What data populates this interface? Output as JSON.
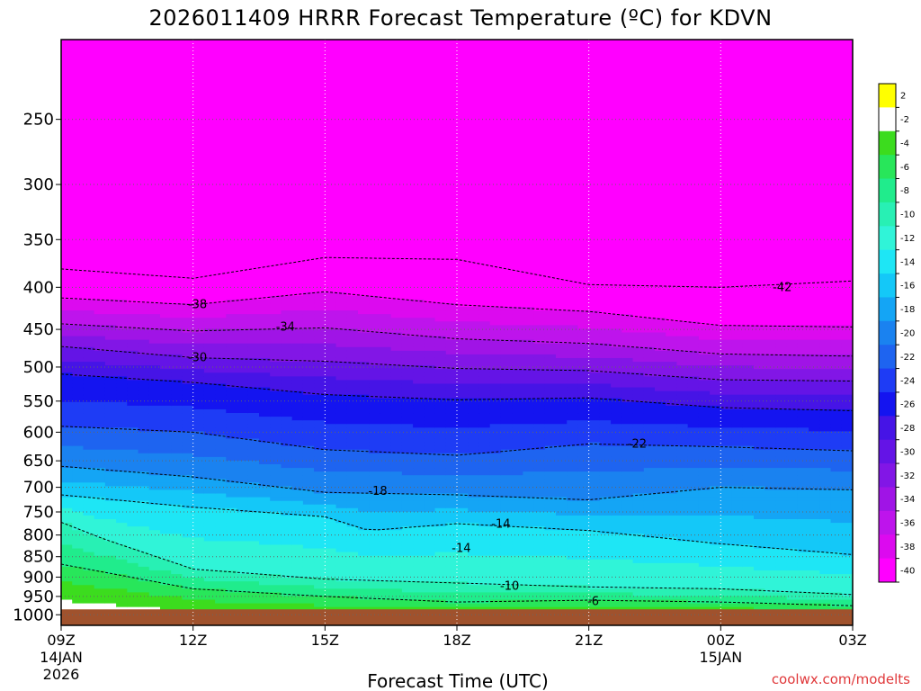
{
  "chart_data": {
    "type": "heatmap",
    "title": "2026011409 HRRR Forecast Temperature (ºC) for KDVN",
    "xlabel": "Forecast Time (UTC)",
    "ylabel": "",
    "credit": "coolwx.com/modelts",
    "x_ticks": [
      {
        "hour": 0,
        "label": "09Z",
        "sub1": "14JAN",
        "sub2": "2026"
      },
      {
        "hour": 3,
        "label": "12Z",
        "sub1": "",
        "sub2": ""
      },
      {
        "hour": 6,
        "label": "15Z",
        "sub1": "",
        "sub2": ""
      },
      {
        "hour": 9,
        "label": "18Z",
        "sub1": "",
        "sub2": ""
      },
      {
        "hour": 12,
        "label": "21Z",
        "sub1": "",
        "sub2": ""
      },
      {
        "hour": 15,
        "label": "00Z",
        "sub1": "15JAN",
        "sub2": ""
      },
      {
        "hour": 18,
        "label": "03Z",
        "sub1": "",
        "sub2": ""
      }
    ],
    "xlim": [
      0,
      18
    ],
    "y_ticks": [
      250,
      300,
      350,
      400,
      450,
      500,
      550,
      600,
      650,
      700,
      750,
      800,
      850,
      900,
      950,
      1000
    ],
    "ylim": [
      1030,
      200
    ],
    "ylog": true,
    "grid": true,
    "surface_color": "#a0522d",
    "colorbar": {
      "levels": [
        2,
        -2,
        -4,
        -6,
        -8,
        -10,
        -12,
        -14,
        -16,
        -18,
        -20,
        -22,
        -24,
        -26,
        -28,
        -30,
        -32,
        -34,
        -36,
        -38,
        -40
      ],
      "colors": [
        "#ffff00",
        "#ffffff",
        "#3cdc1e",
        "#28e65a",
        "#20ec8c",
        "#28f0b4",
        "#30f4d8",
        "#1ee6f5",
        "#14c8f8",
        "#14a5f5",
        "#1a82f0",
        "#1e64f0",
        "#1e3cf5",
        "#1414f0",
        "#4614e6",
        "#6414e6",
        "#8216e6",
        "#a014e6",
        "#be14ec",
        "#dc0aef",
        "#ff00ff"
      ]
    },
    "isotherms": [
      {
        "t": -42,
        "label": "-42",
        "x": [
          0,
          3,
          6,
          9,
          12,
          15,
          18
        ],
        "p": [
          380,
          390,
          368,
          370,
          397,
          400,
          393
        ],
        "lx": 16.4,
        "lp": 400
      },
      {
        "t": -38,
        "label": "-38",
        "x": [
          0,
          3,
          6,
          9,
          12,
          15,
          18
        ],
        "p": [
          412,
          420,
          405,
          420,
          428,
          445,
          447
        ],
        "lx": 3.1,
        "lp": 420
      },
      {
        "t": -34,
        "label": "-34",
        "x": [
          0,
          3,
          6,
          9,
          12,
          15,
          18
        ],
        "p": [
          443,
          452,
          448,
          462,
          468,
          482,
          485
        ],
        "lx": 5.1,
        "lp": 447
      },
      {
        "t": -30,
        "label": "-30",
        "x": [
          0,
          3,
          6,
          9,
          12,
          15,
          18
        ],
        "p": [
          472,
          487,
          492,
          502,
          505,
          518,
          520
        ],
        "lx": 3.1,
        "lp": 487
      },
      {
        "t": -26,
        "label": "",
        "x": [
          0,
          3,
          6,
          9,
          12,
          15,
          18
        ],
        "p": [
          510,
          522,
          540,
          548,
          545,
          560,
          565
        ],
        "lx": 0,
        "lp": 0
      },
      {
        "t": -22,
        "label": "-22",
        "x": [
          0,
          3,
          6,
          9,
          12,
          15,
          18
        ],
        "p": [
          590,
          600,
          630,
          640,
          620,
          625,
          632
        ],
        "lx": 13.1,
        "lp": 620
      },
      {
        "t": -18,
        "label": "-18",
        "x": [
          0,
          3,
          5,
          6,
          9,
          12,
          15,
          18
        ],
        "p": [
          660,
          680,
          700,
          710,
          715,
          725,
          700,
          705
        ],
        "lx": 7.2,
        "lp": 708
      },
      {
        "t": -14,
        "label": "-14",
        "x": [
          0,
          3,
          6,
          7,
          9,
          12,
          15,
          18
        ],
        "p": [
          715,
          740,
          760,
          790,
          775,
          790,
          820,
          845
        ],
        "lx": 10.0,
        "lp": 776
      },
      {
        "t": -10,
        "label": "-10",
        "x": [
          0,
          1,
          3,
          6,
          9,
          12,
          15,
          18
        ],
        "p": [
          772,
          810,
          880,
          905,
          915,
          925,
          930,
          945
        ],
        "lx": 10.2,
        "lp": 923
      },
      {
        "t": -6,
        "label": "-6",
        "x": [
          0,
          3,
          6,
          9,
          12,
          15,
          18
        ],
        "p": [
          868,
          930,
          950,
          965,
          960,
          965,
          975
        ],
        "lx": 12.1,
        "lp": 963
      }
    ],
    "pocket_label": {
      "label": "-14",
      "x": 9.1,
      "p": 830
    }
  }
}
